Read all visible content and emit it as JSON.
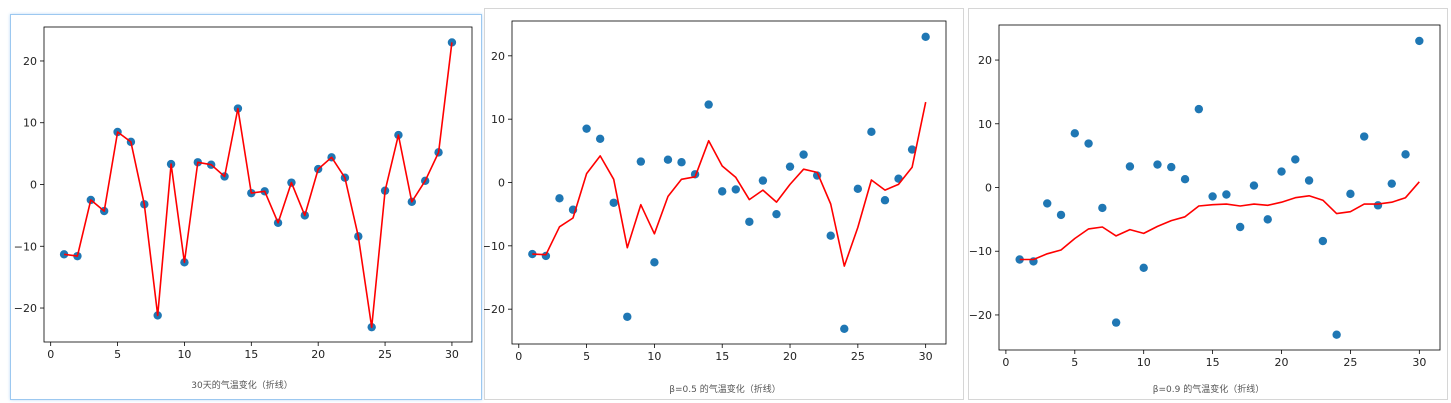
{
  "colors": {
    "point": "#1f77b4",
    "line": "#ff0000",
    "axis": "#000000"
  },
  "chart_data": [
    {
      "type": "line",
      "caption": "30天的气温变化（折线）",
      "x": [
        1,
        2,
        3,
        4,
        5,
        6,
        7,
        8,
        9,
        10,
        11,
        12,
        13,
        14,
        15,
        16,
        17,
        18,
        19,
        20,
        21,
        22,
        23,
        24,
        25,
        26,
        27,
        28,
        29,
        30
      ],
      "series": [
        {
          "kind": "scatter",
          "values": [
            -11.3,
            -11.6,
            -2.5,
            -4.3,
            8.5,
            6.9,
            -3.2,
            -21.2,
            3.3,
            -12.6,
            3.6,
            3.2,
            1.3,
            12.3,
            -1.4,
            -1.1,
            -6.2,
            0.3,
            -5.0,
            2.5,
            4.4,
            1.1,
            -8.4,
            -23.1,
            -1.0,
            8.0,
            -2.8,
            0.6,
            5.2,
            23.0
          ]
        },
        {
          "kind": "line",
          "values": [
            -11.3,
            -11.6,
            -2.5,
            -4.3,
            8.5,
            6.9,
            -3.2,
            -21.2,
            3.3,
            -12.6,
            3.6,
            3.2,
            1.3,
            12.3,
            -1.4,
            -1.1,
            -6.2,
            0.3,
            -5.0,
            2.5,
            4.4,
            1.1,
            -8.4,
            -23.1,
            -1.0,
            8.0,
            -2.8,
            0.6,
            5.2,
            23.0
          ]
        }
      ],
      "xlim": [
        -0.5,
        31.5
      ],
      "ylim": [
        -25.5,
        25.5
      ],
      "xticks": [
        0,
        5,
        10,
        15,
        20,
        25,
        30
      ],
      "yticks": [
        -20,
        -10,
        0,
        10,
        20
      ]
    },
    {
      "type": "line",
      "caption": "β=0.5 的气温变化（折线）",
      "x": [
        1,
        2,
        3,
        4,
        5,
        6,
        7,
        8,
        9,
        10,
        11,
        12,
        13,
        14,
        15,
        16,
        17,
        18,
        19,
        20,
        21,
        22,
        23,
        24,
        25,
        26,
        27,
        28,
        29,
        30
      ],
      "series": [
        {
          "kind": "scatter",
          "values": [
            -11.3,
            -11.6,
            -2.5,
            -4.3,
            8.5,
            6.9,
            -3.2,
            -21.2,
            3.3,
            -12.6,
            3.6,
            3.2,
            1.3,
            12.3,
            -1.4,
            -1.1,
            -6.2,
            0.3,
            -5.0,
            2.5,
            4.4,
            1.1,
            -8.4,
            -23.1,
            -1.0,
            8.0,
            -2.8,
            0.6,
            5.2,
            23.0
          ]
        },
        {
          "kind": "line",
          "values": [
            -11.3,
            -11.4,
            -7.0,
            -5.6,
            1.4,
            4.2,
            0.5,
            -10.3,
            -3.5,
            -8.1,
            -2.2,
            0.5,
            0.9,
            6.6,
            2.6,
            0.8,
            -2.7,
            -1.2,
            -3.1,
            -0.3,
            2.1,
            1.6,
            -3.4,
            -13.2,
            -7.1,
            0.4,
            -1.2,
            -0.3,
            2.4,
            12.7
          ]
        }
      ],
      "xlim": [
        -0.5,
        31.5
      ],
      "ylim": [
        -25.5,
        25.5
      ],
      "xticks": [
        0,
        5,
        10,
        15,
        20,
        25,
        30
      ],
      "yticks": [
        -20,
        -10,
        0,
        10,
        20
      ]
    },
    {
      "type": "line",
      "caption": "β=0.9 的气温变化（折线）",
      "x": [
        1,
        2,
        3,
        4,
        5,
        6,
        7,
        8,
        9,
        10,
        11,
        12,
        13,
        14,
        15,
        16,
        17,
        18,
        19,
        20,
        21,
        22,
        23,
        24,
        25,
        26,
        27,
        28,
        29,
        30
      ],
      "series": [
        {
          "kind": "scatter",
          "values": [
            -11.3,
            -11.6,
            -2.5,
            -4.3,
            8.5,
            6.9,
            -3.2,
            -21.2,
            3.3,
            -12.6,
            3.6,
            3.2,
            1.3,
            12.3,
            -1.4,
            -1.1,
            -6.2,
            0.3,
            -5.0,
            2.5,
            4.4,
            1.1,
            -8.4,
            -23.1,
            -1.0,
            8.0,
            -2.8,
            0.6,
            5.2,
            23.0
          ]
        },
        {
          "kind": "line",
          "values": [
            -11.3,
            -11.3,
            -10.4,
            -9.8,
            -8.0,
            -6.5,
            -6.2,
            -7.6,
            -6.6,
            -7.2,
            -6.1,
            -5.2,
            -4.6,
            -2.9,
            -2.7,
            -2.6,
            -2.9,
            -2.6,
            -2.8,
            -2.3,
            -1.6,
            -1.3,
            -2.0,
            -4.1,
            -3.8,
            -2.6,
            -2.6,
            -2.3,
            -1.6,
            0.9
          ]
        }
      ],
      "xlim": [
        -0.5,
        31.5
      ],
      "ylim": [
        -25.5,
        25.5
      ],
      "xticks": [
        0,
        5,
        10,
        15,
        20,
        25,
        30
      ],
      "yticks": [
        -20,
        -10,
        0,
        10,
        20
      ]
    }
  ]
}
